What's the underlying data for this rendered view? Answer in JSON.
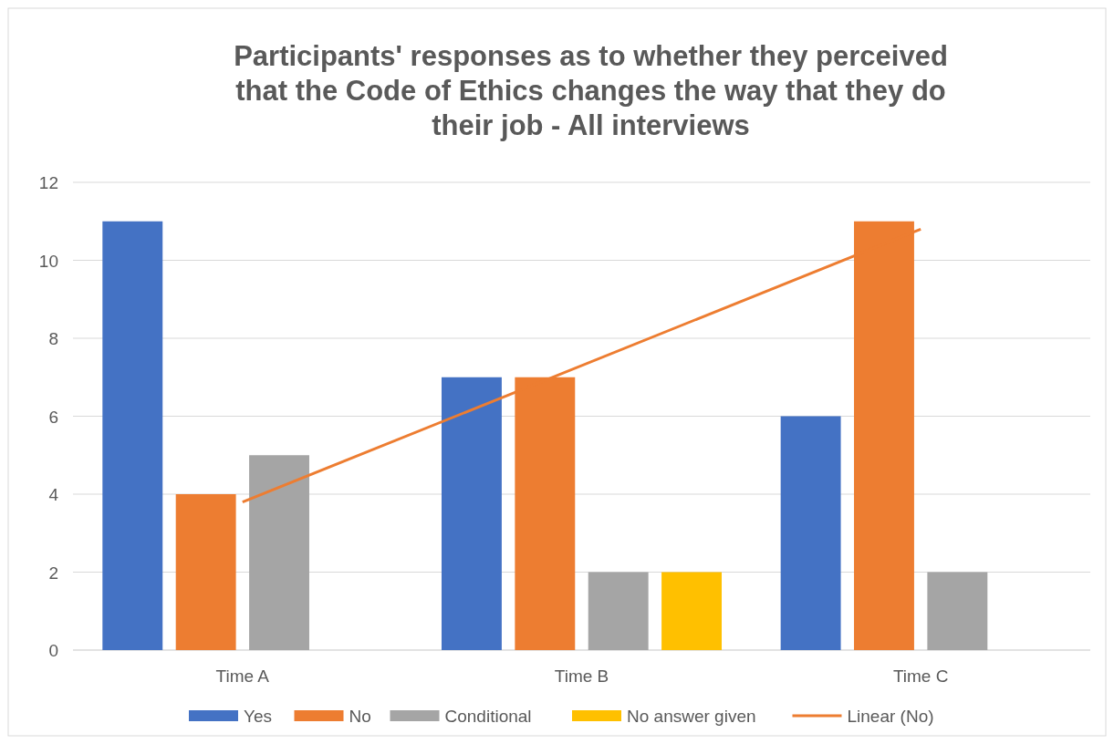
{
  "chart_data": {
    "type": "bar",
    "title": "Participants' responses as to whether they perceived that the Code of Ethics changes the way that they do their job  - All interviews",
    "categories": [
      "Time A",
      "Time B",
      "Time C"
    ],
    "series": [
      {
        "name": "Yes",
        "color": "#4472c4",
        "values": [
          11,
          7,
          6
        ]
      },
      {
        "name": "No",
        "color": "#ed7d31",
        "values": [
          4,
          7,
          11
        ]
      },
      {
        "name": "Conditional",
        "color": "#a5a5a5",
        "values": [
          5,
          2,
          2
        ]
      },
      {
        "name": "No answer given",
        "color": "#ffc000",
        "values": [
          null,
          2,
          null
        ]
      },
      {
        "name": "Linear (No)",
        "type": "line",
        "color": "#ed7d31",
        "x": [
          "Time A",
          "Time C"
        ],
        "values": [
          3.8,
          10.8
        ]
      }
    ],
    "ylim": [
      0,
      12
    ],
    "yticks": [
      0,
      2,
      4,
      6,
      8,
      10,
      12
    ],
    "grid": "y",
    "legend": "bottom"
  }
}
